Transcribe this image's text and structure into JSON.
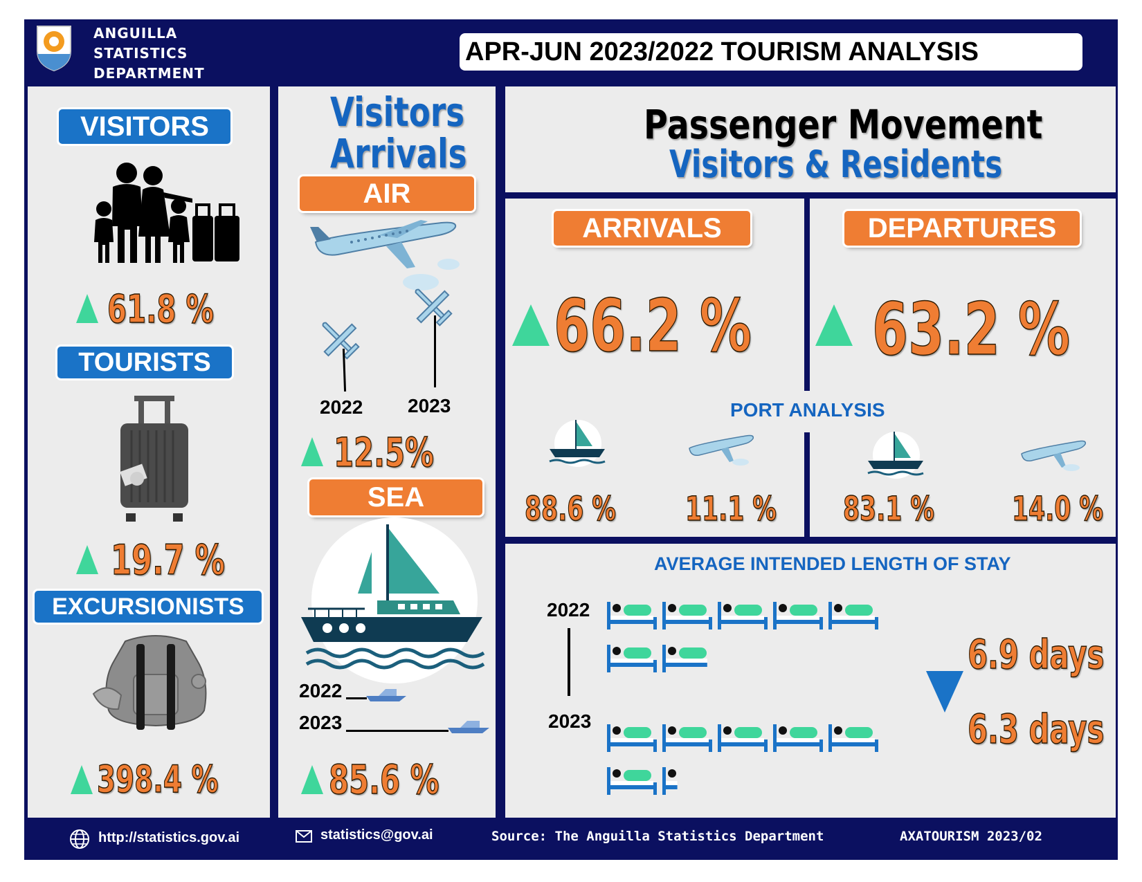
{
  "header": {
    "org_line1": "ANGUILLA",
    "org_line2": "STATISTICS",
    "org_line3": "DEPARTMENT",
    "title": "APR-JUN 2023/2022 TOURISM ANALYSIS"
  },
  "visitors_panel": {
    "visitors_label": "VISITORS",
    "visitors_pct": "61.8 %",
    "tourists_label": "TOURISTS",
    "tourists_pct": "19.7 %",
    "excursionists_label": "EXCURSIONISTS",
    "excursionists_pct": "398.4 %"
  },
  "arrivals_panel": {
    "title_line1": "Visitors",
    "title_line2": "Arrivals",
    "air_label": "AIR",
    "air_year_2022": "2022",
    "air_year_2023": "2023",
    "air_pct": "12.5%",
    "sea_label": "SEA",
    "sea_year_2022": "2022",
    "sea_year_2023": "2023",
    "sea_pct": "85.6 %"
  },
  "passenger_panel": {
    "title": "Passenger Movement",
    "subtitle": "Visitors & Residents",
    "arrivals_label": "ARRIVALS",
    "arrivals_pct": "66.2 %",
    "departures_label": "DEPARTURES",
    "departures_pct": "63.2 %",
    "port_heading": "PORT ANALYSIS",
    "arr_sea_pct": "88.6 %",
    "arr_air_pct": "11.1 %",
    "dep_sea_pct": "83.1 %",
    "dep_air_pct": "14.0 %"
  },
  "stay_panel": {
    "heading": "AVERAGE INTENDED LENGTH OF STAY",
    "year_2022": "2022",
    "year_2023": "2023",
    "days_2022": "6.9 days",
    "days_2023": "6.3 days",
    "beds_2022": 6.9,
    "beds_2023": 6.3
  },
  "footer": {
    "website": "http://statistics.gov.ai",
    "email": "statistics@gov.ai",
    "source": "Source: The Anguilla Statistics Department",
    "code": "AXATOURISM 2023/02"
  },
  "colors": {
    "navy": "#0b1060",
    "orange": "#ef7d33",
    "blue": "#1a73c7",
    "green": "#3fd69b",
    "teal": "#37a59a"
  }
}
